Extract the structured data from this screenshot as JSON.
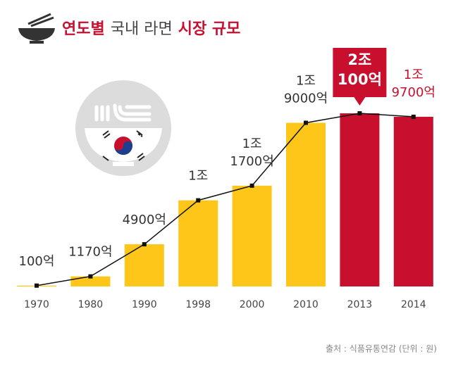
{
  "chart_data": {
    "type": "bar",
    "title_parts": [
      {
        "text": "연도별",
        "color": "#c8102e"
      },
      {
        "text": "국내 라면",
        "color": "#444444"
      },
      {
        "text": "시장 규모",
        "color": "#c8102e"
      }
    ],
    "categories": [
      "1970",
      "1980",
      "1990",
      "1998",
      "2000",
      "2010",
      "2013",
      "2014"
    ],
    "values": [
      100,
      1170,
      4900,
      10000,
      11700,
      19000,
      20100,
      19700
    ],
    "value_labels": [
      [
        "100억"
      ],
      [
        "1170억"
      ],
      [
        "4900억"
      ],
      [
        "1조"
      ],
      [
        "1조",
        "1700억"
      ],
      [
        "1조",
        "9000억"
      ],
      [
        "2조",
        "100억"
      ],
      [
        "1조",
        "9700억"
      ]
    ],
    "colors": [
      "#ffc61a",
      "#ffc61a",
      "#ffc61a",
      "#ffc61a",
      "#ffc61a",
      "#ffc61a",
      "#c8102e",
      "#c8102e"
    ],
    "label_colors": [
      "#333333",
      "#333333",
      "#333333",
      "#333333",
      "#333333",
      "#333333",
      "#ffffff",
      "#c8102e"
    ],
    "line_color": "#111111",
    "source": "출처 : 식품유통연감 (단위 : 원)"
  }
}
